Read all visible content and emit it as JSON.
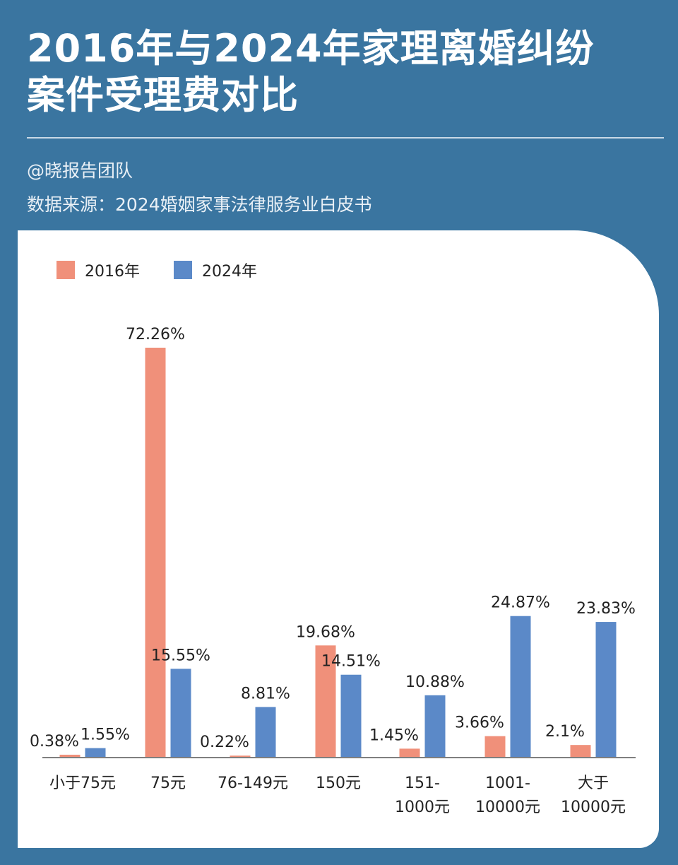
{
  "header": {
    "title_line1": "2016年与2024年家理离婚纠纷",
    "title_line2": "案件受理费对比",
    "author": "@晓报告团队",
    "source": "数据来源：2024婚姻家事法律服务业白皮书"
  },
  "chart_data": {
    "type": "bar",
    "categories": [
      [
        "小于75元"
      ],
      [
        "75元"
      ],
      [
        "76-149元"
      ],
      [
        "150元"
      ],
      [
        "151-",
        "1000元"
      ],
      [
        "1001-",
        "10000元"
      ],
      [
        "大于",
        "10000元"
      ]
    ],
    "series": [
      {
        "name": "2016年",
        "color": "#f0907a",
        "values": [
          0.38,
          72.26,
          0.22,
          19.68,
          1.45,
          3.66,
          2.1
        ],
        "labels": [
          "0.38%",
          "72.26%",
          "0.22%",
          "19.68%",
          "1.45%",
          "3.66%",
          "2.1%"
        ]
      },
      {
        "name": "2024年",
        "color": "#5b89c8",
        "values": [
          1.55,
          15.55,
          8.81,
          14.51,
          10.88,
          24.87,
          23.83
        ],
        "labels": [
          "1.55%",
          "15.55%",
          "8.81%",
          "14.51%",
          "10.88%",
          "24.87%",
          "23.83%"
        ]
      }
    ],
    "legend_position": "top-left",
    "grid": false
  }
}
